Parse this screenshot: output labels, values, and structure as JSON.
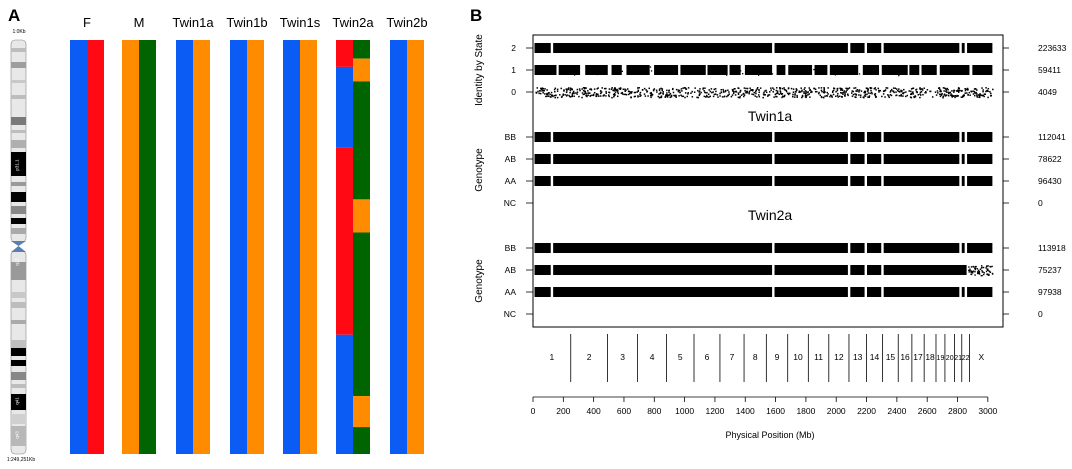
{
  "chart_data": [
    {
      "panel": "A",
      "type": "haplotype-strips",
      "chromosome": {
        "top_label": "1:0Kb",
        "bottom_label": "1:249,251Kb",
        "bands": [
          "p31.1",
          "q12",
          "q41",
          "q43"
        ]
      },
      "colors": {
        "blue": "#0a5cf5",
        "red": "#ff0a14",
        "orange": "#ff8c00",
        "green": "#006400"
      },
      "samples": [
        {
          "name": "F",
          "strips": [
            [
              [
                "blue",
                0,
                1
              ]
            ],
            [
              [
                "red",
                0,
                1
              ]
            ]
          ]
        },
        {
          "name": "M",
          "strips": [
            [
              [
                "orange",
                0,
                1
              ]
            ],
            [
              [
                "green",
                0,
                1
              ]
            ]
          ]
        },
        {
          "name": "Twin1a",
          "strips": [
            [
              [
                "blue",
                0,
                1
              ]
            ],
            [
              [
                "orange",
                0,
                1
              ]
            ]
          ]
        },
        {
          "name": "Twin1b",
          "strips": [
            [
              [
                "blue",
                0,
                1
              ]
            ],
            [
              [
                "orange",
                0,
                1
              ]
            ]
          ]
        },
        {
          "name": "Twin1s",
          "strips": [
            [
              [
                "blue",
                0,
                1
              ]
            ],
            [
              [
                "orange",
                0,
                1
              ]
            ]
          ]
        },
        {
          "name": "Twin2a",
          "strips": [
            [
              [
                "red",
                0,
                0.065
              ],
              [
                "blue",
                0.065,
                0.26
              ],
              [
                "red",
                0.26,
                0.712
              ],
              [
                "blue",
                0.712,
                1
              ]
            ],
            [
              [
                "green",
                0,
                0.045
              ],
              [
                "orange",
                0.045,
                0.1
              ],
              [
                "green",
                0.1,
                0.385
              ],
              [
                "orange",
                0.385,
                0.465
              ],
              [
                "green",
                0.465,
                0.86
              ],
              [
                "orange",
                0.86,
                0.935
              ],
              [
                "green",
                0.935,
                1
              ]
            ]
          ]
        },
        {
          "name": "Twin2b",
          "strips": [
            [
              [
                "blue",
                0,
                1
              ]
            ],
            [
              [
                "orange",
                0,
                1
              ]
            ]
          ]
        }
      ]
    },
    {
      "panel": "B",
      "type": "scatter",
      "titles": [
        "Twin1a",
        "Twin2a"
      ],
      "ylabels": [
        "Identity by State",
        "Genotype",
        "Genotype"
      ],
      "xlabel": "Physical Position (Mb)",
      "xlim": [
        0,
        3100
      ],
      "xticks": [
        0,
        200,
        400,
        600,
        800,
        1000,
        1200,
        1400,
        1600,
        1800,
        2000,
        2200,
        2400,
        2600,
        2800,
        3000
      ],
      "rows": [
        {
          "group": "ibs",
          "label": "2",
          "count": "223633",
          "density": "full"
        },
        {
          "group": "ibs",
          "label": "1",
          "count": "59411",
          "density": "partial"
        },
        {
          "group": "ibs",
          "label": "0",
          "count": "4049",
          "density": "sparse"
        },
        {
          "group": "twin1a",
          "label": "BB",
          "count": "112041",
          "density": "full"
        },
        {
          "group": "twin1a",
          "label": "AB",
          "count": "78622",
          "density": "full"
        },
        {
          "group": "twin1a",
          "label": "AA",
          "count": "96430",
          "density": "full"
        },
        {
          "group": "twin1a",
          "label": "NC",
          "count": "0",
          "density": "none"
        },
        {
          "group": "twin2a",
          "label": "BB",
          "count": "113918",
          "density": "full"
        },
        {
          "group": "twin2a",
          "label": "AB",
          "count": "75237",
          "density": "full-sparse-tail"
        },
        {
          "group": "twin2a",
          "label": "AA",
          "count": "97938",
          "density": "full"
        },
        {
          "group": "twin2a",
          "label": "NC",
          "count": "0",
          "density": "none"
        }
      ],
      "chromosomes": [
        {
          "name": "1",
          "start": 0,
          "end": 249
        },
        {
          "name": "2",
          "start": 249,
          "end": 492
        },
        {
          "name": "3",
          "start": 492,
          "end": 690
        },
        {
          "name": "4",
          "start": 690,
          "end": 881
        },
        {
          "name": "5",
          "start": 881,
          "end": 1062
        },
        {
          "name": "6",
          "start": 1062,
          "end": 1233
        },
        {
          "name": "7",
          "start": 1233,
          "end": 1392
        },
        {
          "name": "8",
          "start": 1392,
          "end": 1539
        },
        {
          "name": "9",
          "start": 1539,
          "end": 1680
        },
        {
          "name": "10",
          "start": 1680,
          "end": 1816
        },
        {
          "name": "11",
          "start": 1816,
          "end": 1951
        },
        {
          "name": "12",
          "start": 1951,
          "end": 2084
        },
        {
          "name": "13",
          "start": 2084,
          "end": 2199
        },
        {
          "name": "14",
          "start": 2199,
          "end": 2306
        },
        {
          "name": "15",
          "start": 2306,
          "end": 2409
        },
        {
          "name": "16",
          "start": 2409,
          "end": 2499
        },
        {
          "name": "17",
          "start": 2499,
          "end": 2580
        },
        {
          "name": "18",
          "start": 2580,
          "end": 2658
        },
        {
          "name": "19",
          "start": 2658,
          "end": 2717
        },
        {
          "name": "20",
          "start": 2717,
          "end": 2780
        },
        {
          "name": "21",
          "start": 2780,
          "end": 2828
        },
        {
          "name": "22",
          "start": 2828,
          "end": 2879
        },
        {
          "name": "X",
          "start": 2879,
          "end": 3035
        }
      ]
    }
  ]
}
